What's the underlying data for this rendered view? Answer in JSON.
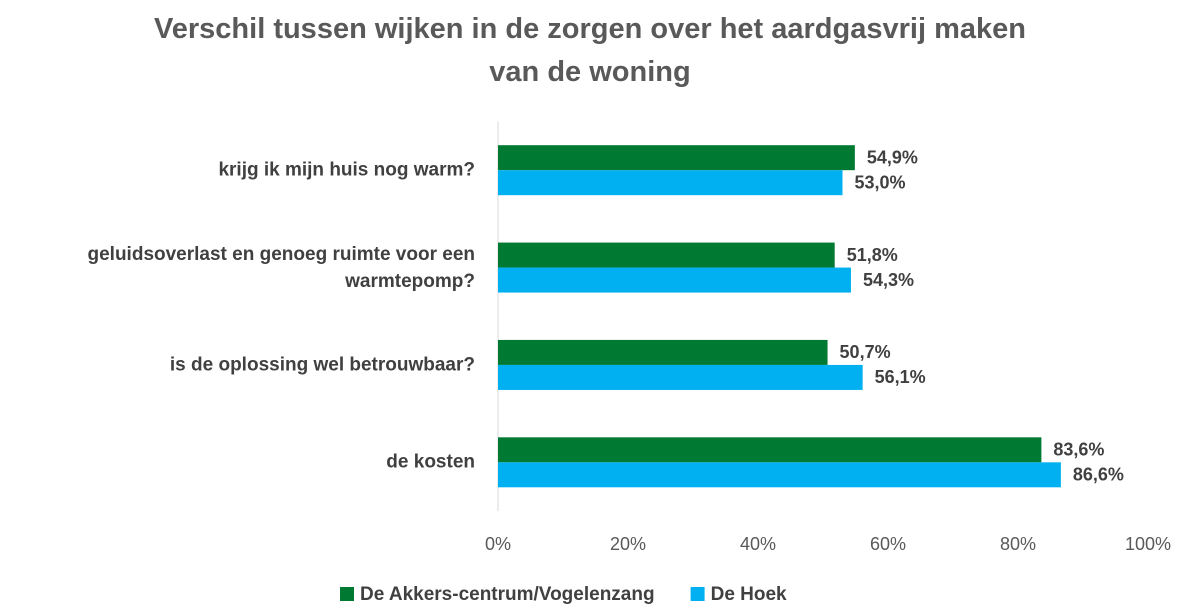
{
  "chart_data": {
    "type": "bar",
    "orientation": "horizontal",
    "title": "Verschil tussen wijken in de zorgen over het aardgasvrij maken van de woning",
    "categories": [
      "krijg ik mijn huis nog warm?",
      "geluidsoverlast en genoeg ruimte voor een warmtepomp?",
      "is de oplossing wel betrouwbaar?",
      "de kosten"
    ],
    "series": [
      {
        "name": "De Akkers-centrum/Vogelenzang",
        "color": "#007a33",
        "values": [
          54.9,
          51.8,
          50.7,
          83.6
        ],
        "value_labels": [
          "54,9%",
          "51,8%",
          "50,7%",
          "83,6%"
        ]
      },
      {
        "name": "De Hoek",
        "color": "#00b0f0",
        "values": [
          53.0,
          54.3,
          56.1,
          86.6
        ],
        "value_labels": [
          "53,0%",
          "54,3%",
          "56,1%",
          "86,6%"
        ]
      }
    ],
    "xlim": [
      0,
      100
    ],
    "xticks": [
      {
        "value": 0,
        "label": "0%"
      },
      {
        "value": 20,
        "label": "20%"
      },
      {
        "value": 40,
        "label": "40%"
      },
      {
        "value": 60,
        "label": "60%"
      },
      {
        "value": 80,
        "label": "80%"
      },
      {
        "value": 100,
        "label": "100%"
      }
    ],
    "legend": "bottom"
  }
}
